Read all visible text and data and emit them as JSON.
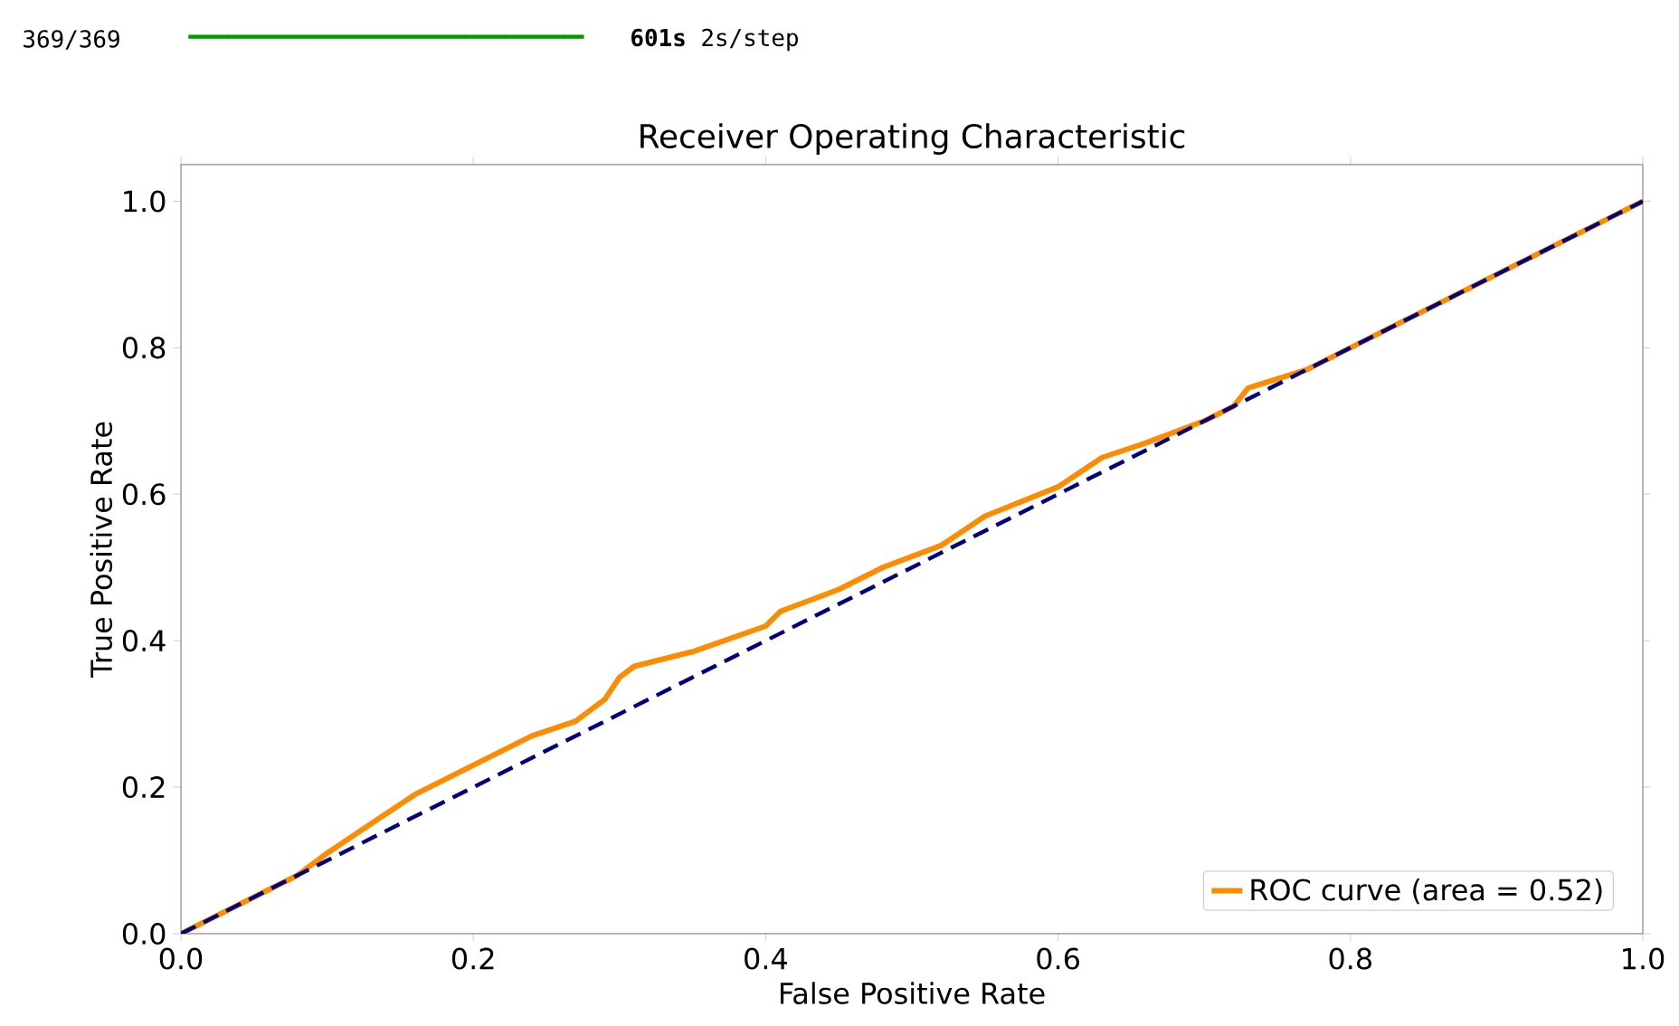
{
  "chart_data": {
    "type": "line",
    "title": "Receiver Operating Characteristic",
    "xlabel": "False Positive Rate",
    "ylabel": "True Positive Rate",
    "annotations": [
      "369/369",
      "━━━━━━━━━━━━━━━━━━━━",
      "**601s** 2s/step"
    ],
    "xlim": [
      0,
      1
    ],
    "ylim": [
      0,
      1.05
    ],
    "xticks": [
      {
        "value": 0,
        "label": "0.0"
      },
      0.2,
      0.4,
      0.6,
      0.8,
      {
        "value": 1,
        "label": "1.0"
      }
    ],
    "yticks": [
      {
        "value": 0,
        "label": "0.0"
      },
      0.2,
      0.4,
      0.6,
      0.8,
      {
        "value": 1,
        "label": "1.0"
      }
    ],
    "legend": "bottom right",
    "grid": false,
    "series": [
      {
        "name": "ROC curve (area = 0.52)",
        "color": "#ff8c00",
        "line_style": "solid",
        "x": [
          0,
          0.05,
          0.08,
          0.1,
          0.13,
          0.16,
          0.2,
          0.24,
          0.27,
          0.29,
          0.3,
          0.31,
          0.35,
          0.4,
          0.41,
          0.45,
          0.48,
          0.52,
          0.55,
          0.6,
          0.63,
          0.66,
          0.7,
          0.72,
          0.73,
          0.77,
          0.8,
          0.82,
          0.9,
          0.95,
          1
        ],
        "values": [
          0,
          0.05,
          0.08,
          0.11,
          0.15,
          0.19,
          0.23,
          0.27,
          0.29,
          0.32,
          0.35,
          0.365,
          0.385,
          0.42,
          0.44,
          0.47,
          0.5,
          0.53,
          0.57,
          0.61,
          0.65,
          0.67,
          0.7,
          0.72,
          0.745,
          0.77,
          0.8,
          0.82,
          0.9,
          0.95,
          1
        ]
      },
      {
        "color": "#000080",
        "line_style": "dashed",
        "x": [
          0,
          1
        ],
        "values": [
          0,
          1
        ]
      }
    ]
  }
}
